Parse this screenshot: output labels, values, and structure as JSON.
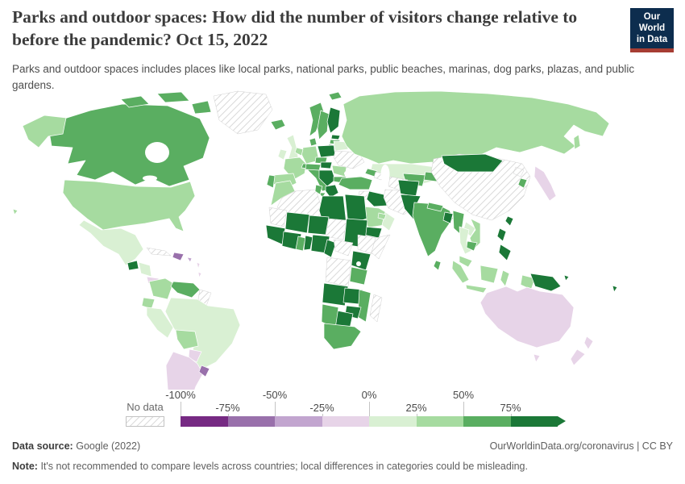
{
  "header": {
    "title": "Parks and outdoor spaces: How did the number of visitors change relative to before the pandemic? Oct 15, 2022",
    "subtitle": "Parks and outdoor spaces includes places like local parks, national parks, public beaches, marinas, dog parks, plazas, and public gardens.",
    "logo": {
      "line1": "Our World",
      "line2": "in Data",
      "bg_color": "#0d2d4e",
      "accent_color": "#a63d33"
    }
  },
  "footer": {
    "source_label": "Data source:",
    "source_value": "Google (2022)",
    "citation": "OurWorldinData.org/coronavirus | CC BY",
    "note_label": "Note:",
    "note_text": "It's not recommended to compare levels across countries; local differences in categories could be misleading."
  },
  "chart_data": {
    "type": "heatmap",
    "subtype": "world-choropleth",
    "title": "Parks and outdoor spaces: How did the number of visitors change relative to before the pandemic?",
    "date": "Oct 15, 2022",
    "unit": "% change in visitors relative to pre-pandemic baseline",
    "legend": {
      "position": "bottom",
      "no_data_label": "No data",
      "tick_labels": [
        "-100%",
        "-75%",
        "-50%",
        "-25%",
        "0%",
        "25%",
        "50%",
        "75%"
      ],
      "buckets": [
        {
          "label": "-100% to -75%",
          "color": "#762a83"
        },
        {
          "label": "-75% to -50%",
          "color": "#9970ab"
        },
        {
          "label": "-50% to -25%",
          "color": "#c2a5cf"
        },
        {
          "label": "-25% to 0%",
          "color": "#e7d4e8"
        },
        {
          "label": "0% to 25%",
          "color": "#d9f0d3"
        },
        {
          "label": "25% to 50%",
          "color": "#a6dba0"
        },
        {
          "label": "50% to 75%",
          "color": "#5aae61"
        },
        {
          "label": "75% and above",
          "color": "#1b7837"
        },
        {
          "label": "No data",
          "color": null
        }
      ]
    },
    "countries": {
      "Greenland": "No data",
      "Cuba": "No data",
      "Guyana": "No data",
      "Suriname": "No data",
      "Ukraine": "No data",
      "Algeria": "No data",
      "Mauritania": "No data",
      "Western Sahara": "No data",
      "Chad": "No data",
      "Central African Republic": "No data",
      "Democratic Republic of Congo": "No data",
      "Republic of Congo": "No data",
      "Gabon": "No data",
      "Ethiopia": "No data",
      "Somalia": "No data",
      "Madagascar": "No data",
      "Syria": "No data",
      "Iran": "No data",
      "Turkmenistan": "No data",
      "Azerbaijan": "No data",
      "China": "No data",
      "North Korea": "No data",
      "Guatemala": "75% and above",
      "Finland": "75% and above",
      "Estonia": "75% and above",
      "Lithuania": "75% and above",
      "Poland": "75% and above",
      "Slovakia": "75% and above",
      "Hungary": "75% and above",
      "Croatia": "75% and above",
      "Serbia": "75% and above",
      "Bosnia and Herzegovina": "75% and above",
      "Albania": "75% and above",
      "North Macedonia": "75% and above",
      "Greece": "75% and above",
      "Libya": "75% and above",
      "Egypt": "75% and above",
      "Sudan": "75% and above",
      "Senegal": "75% and above",
      "Gambia": "75% and above",
      "Guinea": "75% and above",
      "Sierra Leone": "75% and above",
      "Liberia": "75% and above",
      "Mali": "75% and above",
      "Burkina Faso": "75% and above",
      "Côte d'Ivoire": "75% and above",
      "Togo": "75% and above",
      "Benin": "75% and above",
      "Niger": "75% and above",
      "Nigeria": "75% and above",
      "Cameroon": "75% and above",
      "Kenya": "75% and above",
      "Uganda": "75% and above",
      "Rwanda": "75% and above",
      "Angola": "75% and above",
      "Zambia": "75% and above",
      "Zimbabwe": "75% and above",
      "Botswana": "75% and above",
      "Yemen": "75% and above",
      "Iraq": "75% and above",
      "Afghanistan": "75% and above",
      "Pakistan": "75% and above",
      "Bangladesh": "75% and above",
      "Mongolia": "75% and above",
      "Philippines": "75% and above",
      "Taiwan": "75% and above",
      "Papua New Guinea": "75% and above",
      "Solomon Islands": "75% and above",
      "Fiji": "75% and above",
      "Canada": "50% to 75%",
      "Venezuela": "50% to 75%",
      "Iceland": "50% to 75%",
      "Norway": "50% to 75%",
      "Sweden": "50% to 75%",
      "Denmark": "50% to 75%",
      "Latvia": "50% to 75%",
      "Czechia": "50% to 75%",
      "Austria": "50% to 75%",
      "Switzerland": "50% to 75%",
      "Italy": "50% to 75%",
      "Slovenia": "50% to 75%",
      "Bulgaria": "50% to 75%",
      "Portugal": "50% to 75%",
      "Turkey": "50% to 75%",
      "Georgia": "50% to 75%",
      "Israel": "50% to 75%",
      "Tunisia": "50% to 75%",
      "Uzbekistan": "50% to 75%",
      "Kyrgyzstan": "50% to 75%",
      "Tajikistan": "50% to 75%",
      "India": "50% to 75%",
      "Nepal": "50% to 75%",
      "Sri Lanka": "50% to 75%",
      "Myanmar": "50% to 75%",
      "Cambodia": "50% to 75%",
      "South Korea": "50% to 75%",
      "Ghana": "50% to 75%",
      "Tanzania": "50% to 75%",
      "Mozambique": "50% to 75%",
      "Namibia": "50% to 75%",
      "South Africa": "50% to 75%",
      "United States": "25% to 50%",
      "France": "25% to 50%",
      "Spain": "25% to 50%",
      "Germany": "25% to 50%",
      "Netherlands": "25% to 50%",
      "Belgium": "25% to 50%",
      "Luxembourg": "25% to 50%",
      "Romania": "25% to 50%",
      "Russia": "25% to 50%",
      "Morocco": "25% to 50%",
      "Saudi Arabia": "25% to 50%",
      "United Arab Emirates": "25% to 50%",
      "Jordan": "25% to 50%",
      "Colombia": "25% to 50%",
      "Ecuador": "25% to 50%",
      "Bolivia": "25% to 50%",
      "Vietnam": "25% to 50%",
      "Malaysia": "25% to 50%",
      "Indonesia": "25% to 50%",
      "Mexico": "0% to 25%",
      "Honduras": "0% to 25%",
      "Nicaragua": "0% to 25%",
      "United Kingdom": "0% to 25%",
      "Ireland": "0% to 25%",
      "Belarus": "0% to 25%",
      "Kazakhstan": "0% to 25%",
      "Oman": "0% to 25%",
      "Thailand": "0% to 25%",
      "Laos": "0% to 25%",
      "Brazil": "0% to 25%",
      "Peru": "0% to 25%",
      "Costa Rica": "-25% to 0%",
      "Panama": "-25% to 0%",
      "Japan": "-25% to 0%",
      "Australia": "-25% to 0%",
      "New Zealand": "-25% to 0%",
      "Chile": "-25% to 0%",
      "Argentina": "-25% to 0%",
      "Paraguay": "-25% to 0%",
      "Lesser Antilles": "-25% to 0%",
      "Puerto Rico": "-50% to -25%",
      "Dominican Republic": "-75% to -50%",
      "Haiti": "-75% to -50%",
      "Uruguay": "-75% to -50%"
    }
  }
}
